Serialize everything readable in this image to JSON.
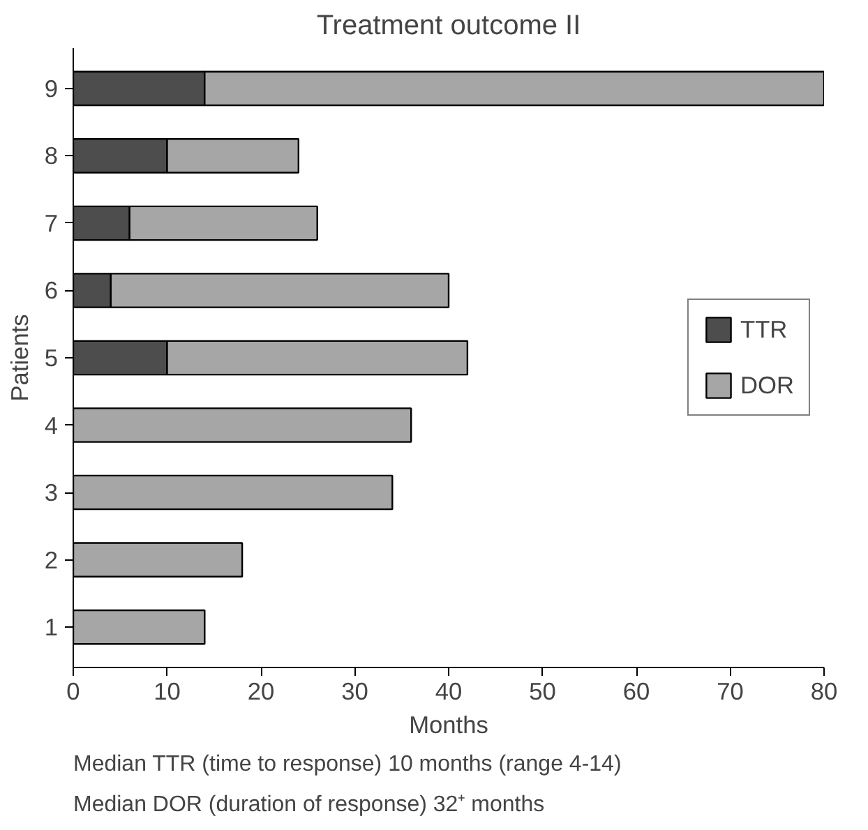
{
  "chart_data": {
    "type": "bar",
    "orientation": "horizontal",
    "stacked": true,
    "title": "Treatment outcome II",
    "xlabel": "Months",
    "ylabel": "Patients",
    "categories": [
      "9",
      "8",
      "7",
      "6",
      "5",
      "4",
      "3",
      "2",
      "1"
    ],
    "series": [
      {
        "name": "TTR",
        "color": "#4d4d4d",
        "values": [
          14,
          10,
          6,
          4,
          10,
          null,
          null,
          null,
          null
        ]
      },
      {
        "name": "DOR",
        "color": "#a6a6a6",
        "values": [
          66,
          14,
          20,
          36,
          32,
          36,
          34,
          18,
          14
        ]
      }
    ],
    "xlim": [
      0,
      80
    ],
    "xticks": [
      0,
      10,
      20,
      30,
      40,
      50,
      60,
      70,
      80
    ],
    "grid": false,
    "legend": "right",
    "annotations": [
      "Median TTR (time to response) 10 months (range 4-14)",
      "Median DOR (duration of response) 32⁺ months"
    ]
  }
}
